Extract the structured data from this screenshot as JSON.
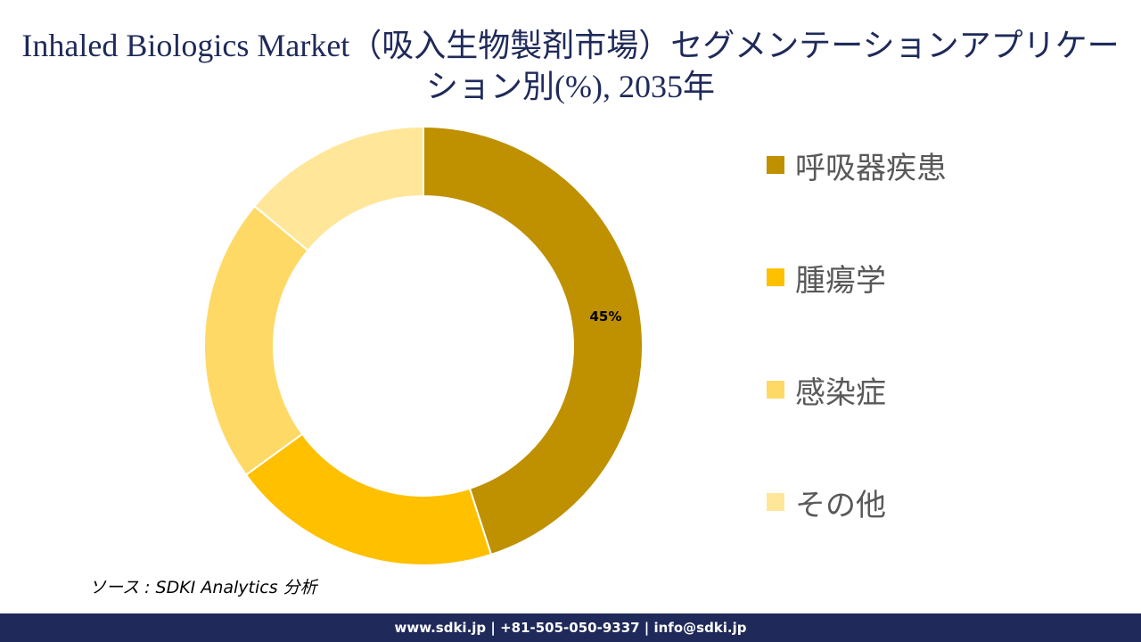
{
  "title": "Inhaled Biologics Market（吸入生物製剤市場）セグメンテーションアプリケーション別(%), 2035年",
  "chart_data": {
    "type": "pie",
    "donut": true,
    "categories": [
      "呼吸器疾患",
      "腫瘍学",
      "感染症",
      "その他"
    ],
    "values": [
      45,
      20,
      21,
      14
    ],
    "colors": [
      "#bf9000",
      "#ffc000",
      "#ffd966",
      "#ffe699"
    ],
    "data_labels": [
      "45%",
      "",
      "",
      ""
    ],
    "legend_position": "right"
  },
  "source": "ソース : SDKI Analytics  分析",
  "footer": "www.sdki.jp | +81-505-050-9337 | info@sdki.jp"
}
